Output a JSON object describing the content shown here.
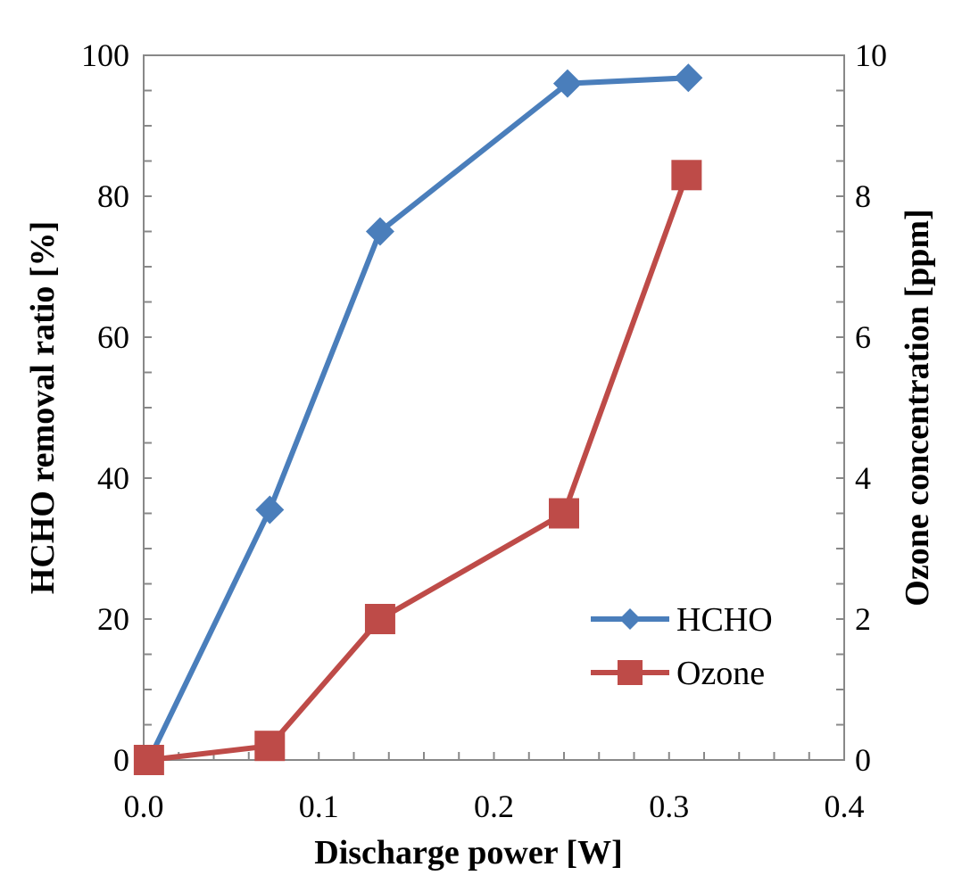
{
  "chart_data": {
    "type": "line",
    "title": "",
    "xlabel": "Discharge power [W]",
    "ylabel": "HCHO removal ratio [%]",
    "y2label": "Ozone concentration [ppm]",
    "xlim": [
      0.0,
      0.4
    ],
    "ylim": [
      0,
      100
    ],
    "y2lim": [
      0,
      10
    ],
    "x_ticks": [
      "0.0",
      "0.1",
      "0.2",
      "0.3",
      "0.4"
    ],
    "y_ticks": [
      "0",
      "20",
      "40",
      "60",
      "80",
      "100"
    ],
    "y2_ticks": [
      "0",
      "2",
      "4",
      "6",
      "8",
      "10"
    ],
    "grid": false,
    "legend_position": "bottom-right",
    "series": [
      {
        "name": "HCHO",
        "axis": "left",
        "marker": "diamond",
        "color": "#4a7ebb",
        "x": [
          0.003,
          0.072,
          0.135,
          0.242,
          0.311
        ],
        "values": [
          0,
          35.5,
          75,
          96,
          96.8
        ]
      },
      {
        "name": "Ozone",
        "axis": "right",
        "marker": "square",
        "color": "#be4b48",
        "x": [
          0.003,
          0.072,
          0.135,
          0.24,
          0.31
        ],
        "values": [
          0,
          0.2,
          2.0,
          3.5,
          8.3
        ]
      }
    ]
  }
}
